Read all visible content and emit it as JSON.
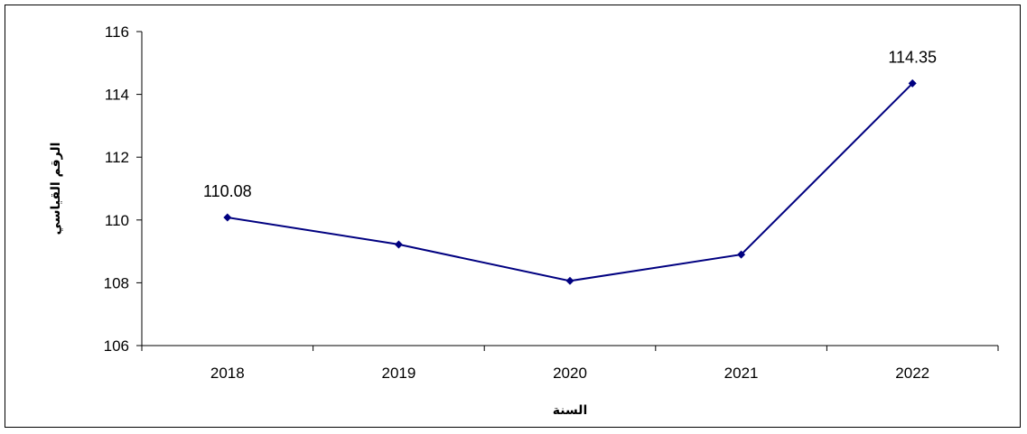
{
  "chart_data": {
    "type": "line",
    "categories": [
      "2018",
      "2019",
      "2020",
      "2021",
      "2022"
    ],
    "series": [
      {
        "values": [
          110.08,
          109.22,
          108.06,
          108.9,
          114.35
        ]
      }
    ],
    "data_labels": [
      "110.08",
      "",
      "",
      "",
      "114.35"
    ],
    "xlabel": "السنة",
    "ylabel": "الرقم القياسي",
    "ylim": [
      106,
      116
    ],
    "yticks": [
      "106",
      "108",
      "110",
      "112",
      "114",
      "116"
    ],
    "grid": false,
    "line_color": "#000080",
    "marker": "diamond"
  }
}
